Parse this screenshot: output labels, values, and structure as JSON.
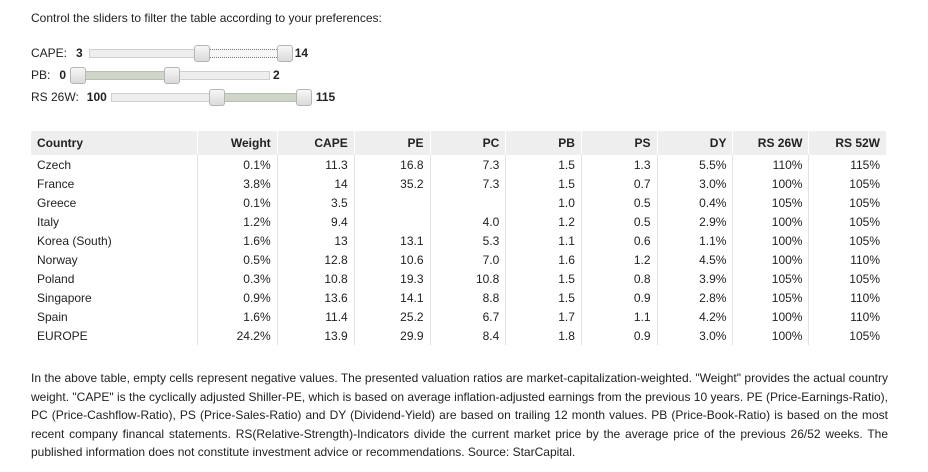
{
  "intro": "Control the sliders to filter the table according to your preferences:",
  "sliders": [
    {
      "label": "CAPE:",
      "min": "3",
      "max": "14",
      "low_frac": 0.56,
      "high_frac": 1.0,
      "style": "dotted"
    },
    {
      "label": "PB:",
      "min": "0",
      "max": "2",
      "low_frac": 0.0,
      "high_frac": 0.51,
      "style": "solid"
    },
    {
      "label": "RS 26W:",
      "min": "100",
      "max": "115",
      "low_frac": 0.53,
      "high_frac": 1.0,
      "style": "solid"
    }
  ],
  "table": {
    "headers": [
      "Country",
      "Weight",
      "CAPE",
      "PE",
      "PC",
      "PB",
      "PS",
      "DY",
      "RS 26W",
      "RS 52W"
    ],
    "rows": [
      [
        "Czech",
        "0.1%",
        "11.3",
        "16.8",
        "7.3",
        "1.5",
        "1.3",
        "5.5%",
        "110%",
        "115%"
      ],
      [
        "France",
        "3.8%",
        "14",
        "35.2",
        "7.3",
        "1.5",
        "0.7",
        "3.0%",
        "100%",
        "105%"
      ],
      [
        "Greece",
        "0.1%",
        "3.5",
        "",
        "",
        "1.0",
        "0.5",
        "0.4%",
        "105%",
        "105%"
      ],
      [
        "Italy",
        "1.2%",
        "9.4",
        "",
        "4.0",
        "1.2",
        "0.5",
        "2.9%",
        "100%",
        "105%"
      ],
      [
        "Korea (South)",
        "1.6%",
        "13",
        "13.1",
        "5.3",
        "1.1",
        "0.6",
        "1.1%",
        "100%",
        "105%"
      ],
      [
        "Norway",
        "0.5%",
        "12.8",
        "10.6",
        "7.0",
        "1.6",
        "1.2",
        "4.5%",
        "100%",
        "110%"
      ],
      [
        "Poland",
        "0.3%",
        "10.8",
        "19.3",
        "10.8",
        "1.5",
        "0.8",
        "3.9%",
        "105%",
        "105%"
      ],
      [
        "Singapore",
        "0.9%",
        "13.6",
        "14.1",
        "8.8",
        "1.5",
        "0.9",
        "2.8%",
        "105%",
        "110%"
      ],
      [
        "Spain",
        "1.6%",
        "11.4",
        "25.2",
        "6.7",
        "1.7",
        "1.1",
        "4.2%",
        "100%",
        "110%"
      ],
      [
        "EUROPE",
        "24.2%",
        "13.9",
        "29.9",
        "8.4",
        "1.8",
        "0.9",
        "3.0%",
        "100%",
        "105%"
      ]
    ]
  },
  "note": "In the above table, empty cells represent negative values. The presented valuation ratios are market-capitalization-weighted. \"Weight\" provides the actual country weight. \"CAPE\" is the cyclically adjusted Shiller-PE, which is based on average inflation-adjusted earnings from the previous 10 years. PE (Price-Earnings-Ratio), PC (Price-Cashflow-Ratio), PS (Price-Sales-Ratio) and DY (Dividend-Yield) are based on trailing 12 month values. PB (Price-Book-Ratio) is based on the most recent company financal statements. RS(Relative-Strength)-Indicators divide the current market price by the average price of the previous 26/52 weeks. The published information does not constitute investment advice or recommendations. Source: StarCapital."
}
